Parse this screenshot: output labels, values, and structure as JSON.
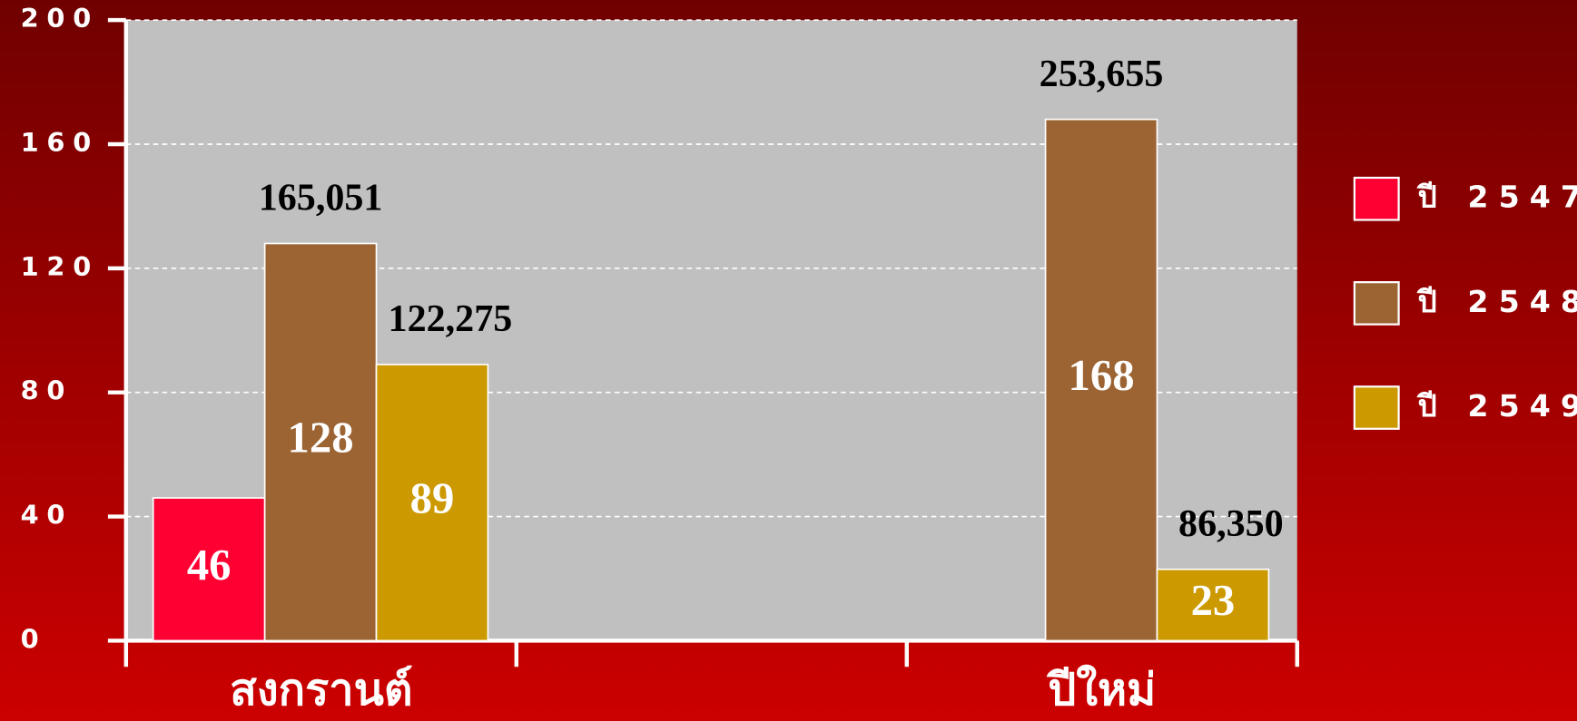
{
  "chart_data": {
    "type": "bar",
    "categories": [
      "สงกรานต์",
      null,
      "ปีใหม่"
    ],
    "series": [
      {
        "name": "ปี 2547",
        "color": "#ff0033",
        "values": [
          46,
          null,
          null
        ]
      },
      {
        "name": "ปี 2548",
        "color": "#9c6433",
        "values": [
          128,
          null,
          168
        ],
        "annotations": [
          "165,051",
          null,
          "253,655"
        ]
      },
      {
        "name": "ปี 2549",
        "color": "#cc9900",
        "values": [
          89,
          null,
          23
        ],
        "annotations": [
          "122,275",
          null,
          "86,350"
        ]
      }
    ],
    "ylim": [
      0,
      200
    ],
    "yticks": [
      0,
      40,
      80,
      120,
      160,
      200
    ],
    "grid": true,
    "legend": "right",
    "plot_color": "#c0c0c0"
  }
}
